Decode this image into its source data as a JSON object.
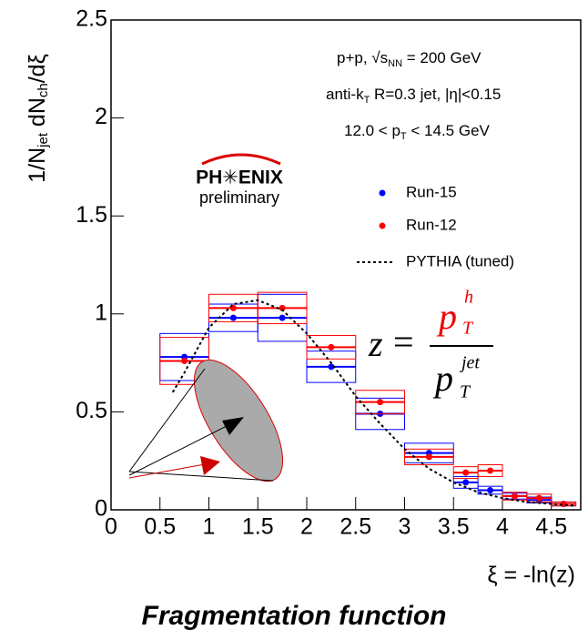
{
  "chart_data": {
    "type": "scatter",
    "ylabel_parts": [
      "1/N",
      "jet",
      " dN",
      "ch",
      "/dξ"
    ],
    "xlabel": "ξ = -ln(z)",
    "caption": "Fragmentation function",
    "logo": "PH✳ENIX",
    "logo_sub": "preliminary",
    "annotations": [
      [
        "p+p, √s",
        "NN",
        " = 200 GeV"
      ],
      [
        "anti-k",
        "T",
        " R=0.3 jet, |η|<0.15"
      ],
      [
        "12.0 < p",
        "T",
        " < 14.5 GeV"
      ]
    ],
    "formula": {
      "lhs": "z",
      "eq": "=",
      "num": "p",
      "num_sup": "h",
      "num_sub": "T",
      "den": "p",
      "den_sup": "jet",
      "den_sub": "T"
    },
    "xlim": [
      0,
      4.8
    ],
    "ylim": [
      0,
      2.5
    ],
    "xticks": [
      0,
      0.5,
      1,
      1.5,
      2,
      2.5,
      3,
      3.5,
      4,
      4.5
    ],
    "yticks": [
      0,
      0.5,
      1,
      1.5,
      2,
      2.5
    ],
    "bins": [
      0.5,
      1,
      1.5,
      2,
      2.5,
      3,
      3.5,
      3.75,
      4,
      4.25,
      4.5,
      4.75
    ],
    "series": [
      {
        "name": "Run-15",
        "color": "#0000ff",
        "marker": "circle",
        "x": [
          0.75,
          1.25,
          1.75,
          2.25,
          2.75,
          3.25,
          3.625,
          3.875,
          4.125,
          4.375,
          4.625
        ],
        "values": [
          0.78,
          0.98,
          0.98,
          0.73,
          0.49,
          0.29,
          0.14,
          0.1,
          0.07,
          0.05,
          0.03
        ],
        "sys": [
          0.12,
          0.07,
          0.12,
          0.08,
          0.08,
          0.05,
          0.03,
          0.02,
          0.015,
          0.015,
          0.01
        ]
      },
      {
        "name": "Run-12",
        "color": "#ff0000",
        "marker": "circle",
        "x": [
          0.75,
          1.25,
          1.75,
          2.25,
          2.75,
          3.25,
          3.625,
          3.875,
          4.125,
          4.375,
          4.625
        ],
        "values": [
          0.76,
          1.03,
          1.03,
          0.83,
          0.55,
          0.27,
          0.19,
          0.2,
          0.07,
          0.06,
          0.03
        ],
        "sys": [
          0.12,
          0.07,
          0.08,
          0.06,
          0.06,
          0.04,
          0.03,
          0.03,
          0.02,
          0.02,
          0.01
        ]
      },
      {
        "name": "PYTHIA (tuned)",
        "color": "#000000",
        "line_style": "dotted",
        "x": [
          0.63,
          0.75,
          1.0,
          1.25,
          1.5,
          1.75,
          2.0,
          2.25,
          2.5,
          2.75,
          3.0,
          3.25,
          3.5,
          3.75,
          4.0,
          4.25,
          4.5,
          4.75
        ],
        "values": [
          0.6,
          0.7,
          0.93,
          1.05,
          1.07,
          1.02,
          0.9,
          0.75,
          0.58,
          0.44,
          0.31,
          0.21,
          0.14,
          0.09,
          0.06,
          0.04,
          0.03,
          0.02
        ]
      }
    ]
  }
}
